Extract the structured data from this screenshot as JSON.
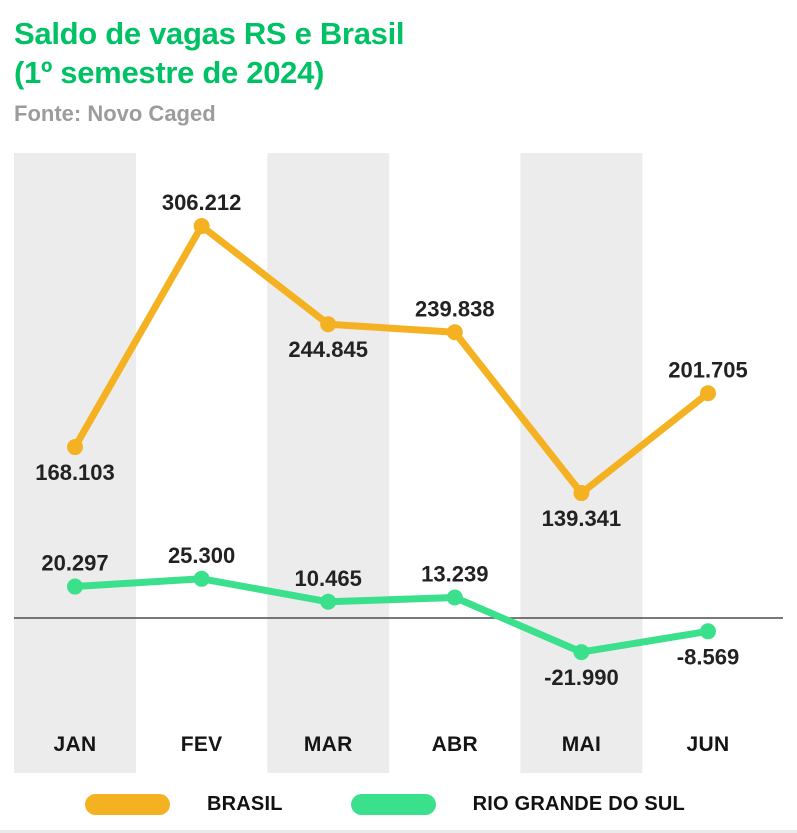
{
  "header": {
    "title_line1": "Saldo de vagas RS e Brasil",
    "title_line2": "(1º semestre de 2024)",
    "source": "Fonte: Novo Caged"
  },
  "chart_data": {
    "type": "line",
    "title": "Saldo de vagas RS e Brasil (1º semestre de 2024)",
    "source": "Fonte: Novo Caged",
    "xlabel": "",
    "ylabel": "",
    "categories": [
      "JAN",
      "FEV",
      "MAR",
      "ABR",
      "MAI",
      "JUN"
    ],
    "series": [
      {
        "name": "BRASIL",
        "color": "#F4B223",
        "values": [
          168103,
          306212,
          244845,
          239838,
          139341,
          201705
        ],
        "labels": [
          "168.103",
          "306.212",
          "244.845",
          "239.838",
          "139.341",
          "201.705"
        ],
        "label_positions": [
          "below",
          "above",
          "below",
          "above",
          "below",
          "above"
        ]
      },
      {
        "name": "RIO GRANDE DO SUL",
        "color": "#3BE08C",
        "values": [
          20297,
          25300,
          10465,
          13239,
          -21990,
          -8569
        ],
        "labels": [
          "20.297",
          "25.300",
          "10.465",
          "13.239",
          "-21.990",
          "-8.569"
        ],
        "label_positions": [
          "above",
          "above",
          "above",
          "above",
          "below",
          "below"
        ]
      }
    ],
    "ylim": [
      -30000,
      320000
    ],
    "zero_line": true,
    "grid": false,
    "banded_columns": [
      0,
      2,
      4
    ],
    "legend_position": "bottom"
  },
  "legend": {
    "items": [
      {
        "label": "BRASIL",
        "color": "#F4B223"
      },
      {
        "label": "RIO GRANDE DO SUL",
        "color": "#3BE08C"
      }
    ]
  },
  "colors": {
    "title_green": "#00C264",
    "brasil_yellow": "#F4B223",
    "rs_green": "#3BE08C",
    "band_gray": "#ECECEC",
    "source_gray": "#9C9C9C",
    "zero_line": "#4D4D4D",
    "text_dark": "#1C1C1C"
  }
}
